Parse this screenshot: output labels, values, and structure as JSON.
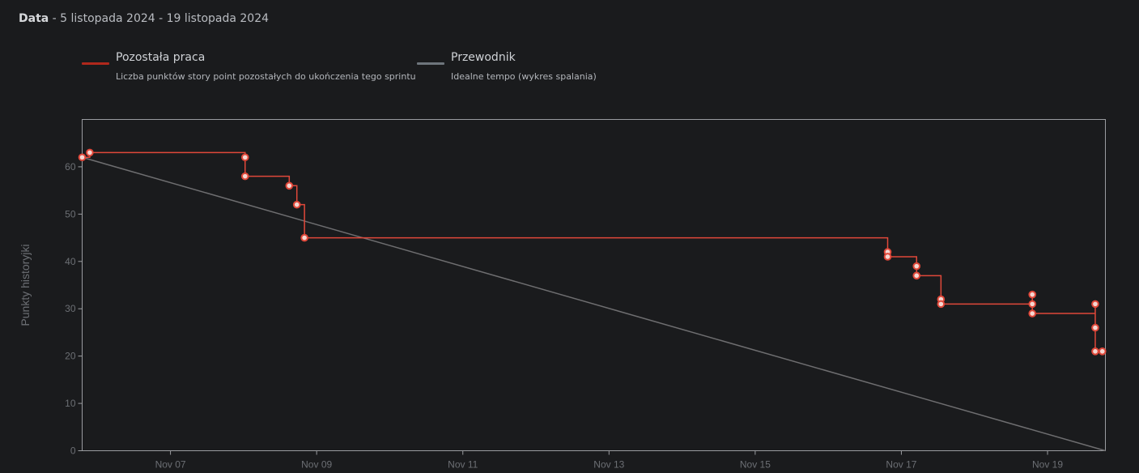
{
  "header": {
    "label": "Data",
    "separator": " - ",
    "range": "5 listopada 2024 - 19 listopada 2024"
  },
  "legend": [
    {
      "title": "Pozostała praca",
      "description": "Liczba punktów story point pozostałych do ukończenia tego sprintu",
      "color": "#b0281c"
    },
    {
      "title": "Przewodnik",
      "description": "Idealne tempo (wykres spalania)",
      "color": "#6e757c"
    }
  ],
  "chart_data": {
    "type": "line",
    "ylabel": "Punkty historyjki",
    "ylim": [
      0,
      70
    ],
    "yticks": [
      0,
      10,
      20,
      30,
      40,
      50,
      60
    ],
    "xlim": [
      "2024-11-05 19:00",
      "2024-11-19 19:00"
    ],
    "xticks": [
      {
        "date": "2024-11-07",
        "label": "Nov 07"
      },
      {
        "date": "2024-11-09",
        "label": "Nov 09"
      },
      {
        "date": "2024-11-11",
        "label": "Nov 11"
      },
      {
        "date": "2024-11-13",
        "label": "Nov 13"
      },
      {
        "date": "2024-11-15",
        "label": "Nov 15"
      },
      {
        "date": "2024-11-17",
        "label": "Nov 17"
      },
      {
        "date": "2024-11-19",
        "label": "Nov 19"
      }
    ],
    "series": [
      {
        "name": "Pozostała praca",
        "color": "#e0483a",
        "step": true,
        "points": [
          {
            "x": "2024-11-05 19:00",
            "y": 62
          },
          {
            "x": "2024-11-05 21:30",
            "y": 63
          },
          {
            "x": "2024-11-08 00:30",
            "y": 62
          },
          {
            "x": "2024-11-08 00:30",
            "y": 58
          },
          {
            "x": "2024-11-08 15:00",
            "y": 56
          },
          {
            "x": "2024-11-08 17:30",
            "y": 52
          },
          {
            "x": "2024-11-08 20:00",
            "y": 45
          },
          {
            "x": "2024-11-16 19:30",
            "y": 42
          },
          {
            "x": "2024-11-16 19:30",
            "y": 41
          },
          {
            "x": "2024-11-17 05:00",
            "y": 39
          },
          {
            "x": "2024-11-17 05:00",
            "y": 37
          },
          {
            "x": "2024-11-17 13:00",
            "y": 32
          },
          {
            "x": "2024-11-17 13:00",
            "y": 31
          },
          {
            "x": "2024-11-18 19:00",
            "y": 33
          },
          {
            "x": "2024-11-18 19:00",
            "y": 31
          },
          {
            "x": "2024-11-18 19:00",
            "y": 29
          },
          {
            "x": "2024-11-19 15:40",
            "y": 31
          },
          {
            "x": "2024-11-19 15:40",
            "y": 26
          },
          {
            "x": "2024-11-19 15:40",
            "y": 21
          },
          {
            "x": "2024-11-19 18:00",
            "y": 21
          }
        ]
      },
      {
        "name": "Przewodnik",
        "color": "#6e6e70",
        "points": [
          {
            "x": "2024-11-05 19:00",
            "y": 62
          },
          {
            "x": "2024-11-19 19:00",
            "y": 0
          }
        ]
      }
    ],
    "grid": false
  }
}
